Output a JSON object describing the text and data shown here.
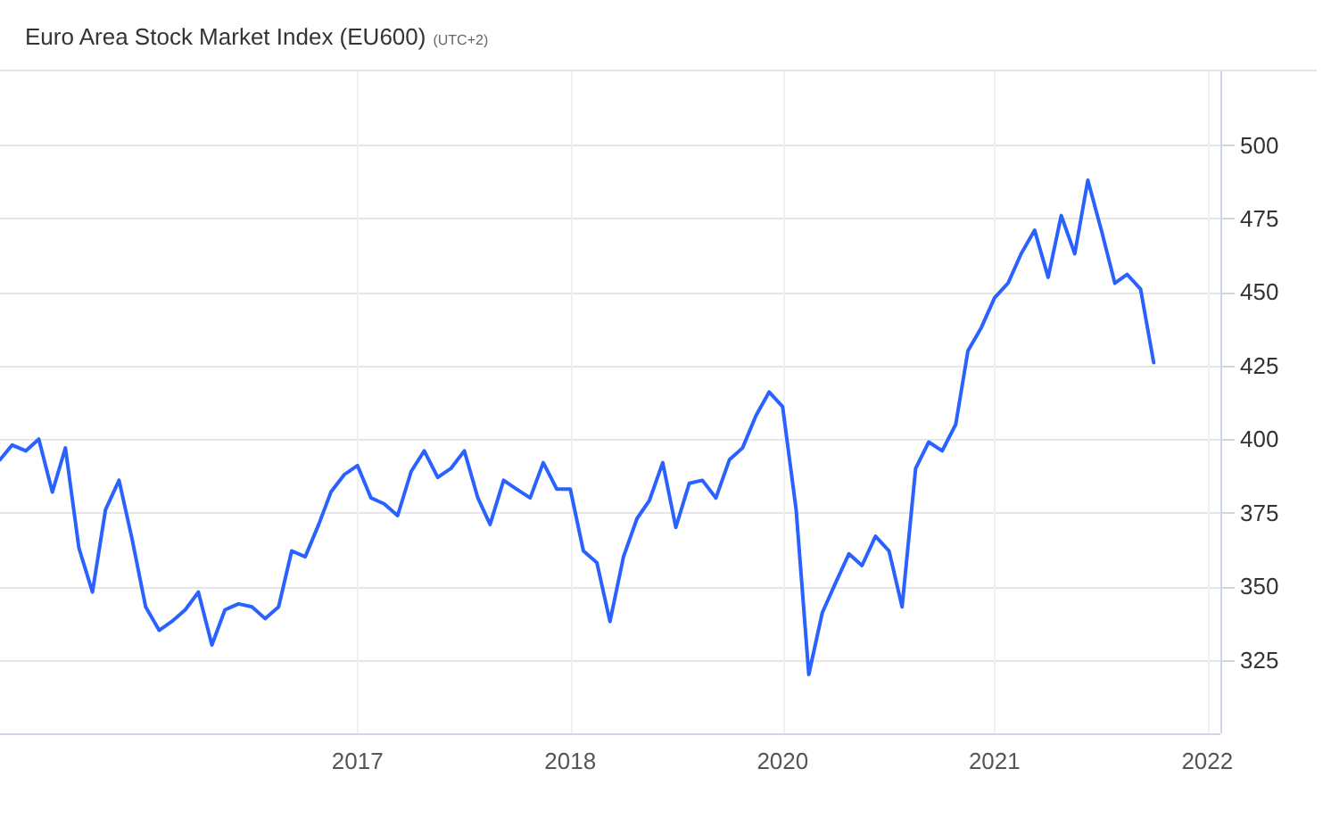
{
  "chart_data": {
    "type": "line",
    "title": "Euro Area Stock Market Index (EU600)",
    "subtitle": "(UTC+2)",
    "x": [
      "2015-02",
      "2015-03",
      "2015-04",
      "2015-05",
      "2015-06",
      "2015-07",
      "2015-08",
      "2015-09",
      "2015-10",
      "2015-11",
      "2015-12",
      "2016-01",
      "2016-02",
      "2016-03",
      "2016-04",
      "2016-05",
      "2016-06",
      "2016-07",
      "2016-08",
      "2016-09",
      "2016-10",
      "2016-11",
      "2016-12",
      "2017-01",
      "2017-02",
      "2017-03",
      "2017-04",
      "2017-05",
      "2017-06",
      "2017-07",
      "2017-08",
      "2017-09",
      "2017-10",
      "2017-11",
      "2017-12",
      "2018-01",
      "2018-02",
      "2018-03",
      "2018-04",
      "2018-05",
      "2018-06",
      "2018-07",
      "2018-08",
      "2018-09",
      "2018-10",
      "2018-11",
      "2018-12",
      "2019-01",
      "2019-02",
      "2019-03",
      "2019-04",
      "2019-05",
      "2019-06",
      "2019-07",
      "2019-08",
      "2019-09",
      "2019-10",
      "2019-11",
      "2019-12",
      "2020-01",
      "2020-02",
      "2020-03",
      "2020-04",
      "2020-05",
      "2020-06",
      "2020-07",
      "2020-08",
      "2020-09",
      "2020-10",
      "2020-11",
      "2020-12",
      "2021-01",
      "2021-02",
      "2021-03",
      "2021-04",
      "2021-05",
      "2021-06",
      "2021-07",
      "2021-08",
      "2021-09",
      "2021-10",
      "2021-11",
      "2021-12",
      "2022-01",
      "2022-02",
      "2022-03",
      "2022-04",
      "2022-05"
    ],
    "values": [
      393,
      398,
      396,
      400,
      382,
      397,
      363,
      348,
      376,
      386,
      366,
      343,
      335,
      338,
      342,
      348,
      330,
      342,
      344,
      343,
      339,
      343,
      362,
      360,
      371,
      382,
      388,
      391,
      380,
      378,
      374,
      389,
      396,
      387,
      390,
      396,
      380,
      371,
      386,
      383,
      380,
      392,
      383,
      383,
      362,
      358,
      338,
      360,
      373,
      379,
      392,
      370,
      385,
      386,
      380,
      393,
      397,
      408,
      416,
      411,
      376,
      320,
      341,
      351,
      361,
      357,
      367,
      362,
      343,
      390,
      399,
      396,
      405,
      430,
      438,
      448,
      453,
      463,
      471,
      455,
      476,
      463,
      488,
      471,
      453,
      456,
      451,
      426
    ],
    "color": "#2962ff",
    "xlim": [
      "2015-02",
      "2022-10"
    ],
    "xticks": [
      {
        "value": "2017-05",
        "label": "2017"
      },
      {
        "value": "2018-09",
        "label": "2018"
      },
      {
        "value": "2020-01",
        "label": "2020"
      },
      {
        "value": "2021-05",
        "label": "2021"
      },
      {
        "value": "2022-09",
        "label": "2022"
      }
    ],
    "ylim": [
      300,
      525
    ],
    "yticks": [
      325,
      350,
      375,
      400,
      425,
      450,
      475,
      500
    ],
    "grid": true
  }
}
